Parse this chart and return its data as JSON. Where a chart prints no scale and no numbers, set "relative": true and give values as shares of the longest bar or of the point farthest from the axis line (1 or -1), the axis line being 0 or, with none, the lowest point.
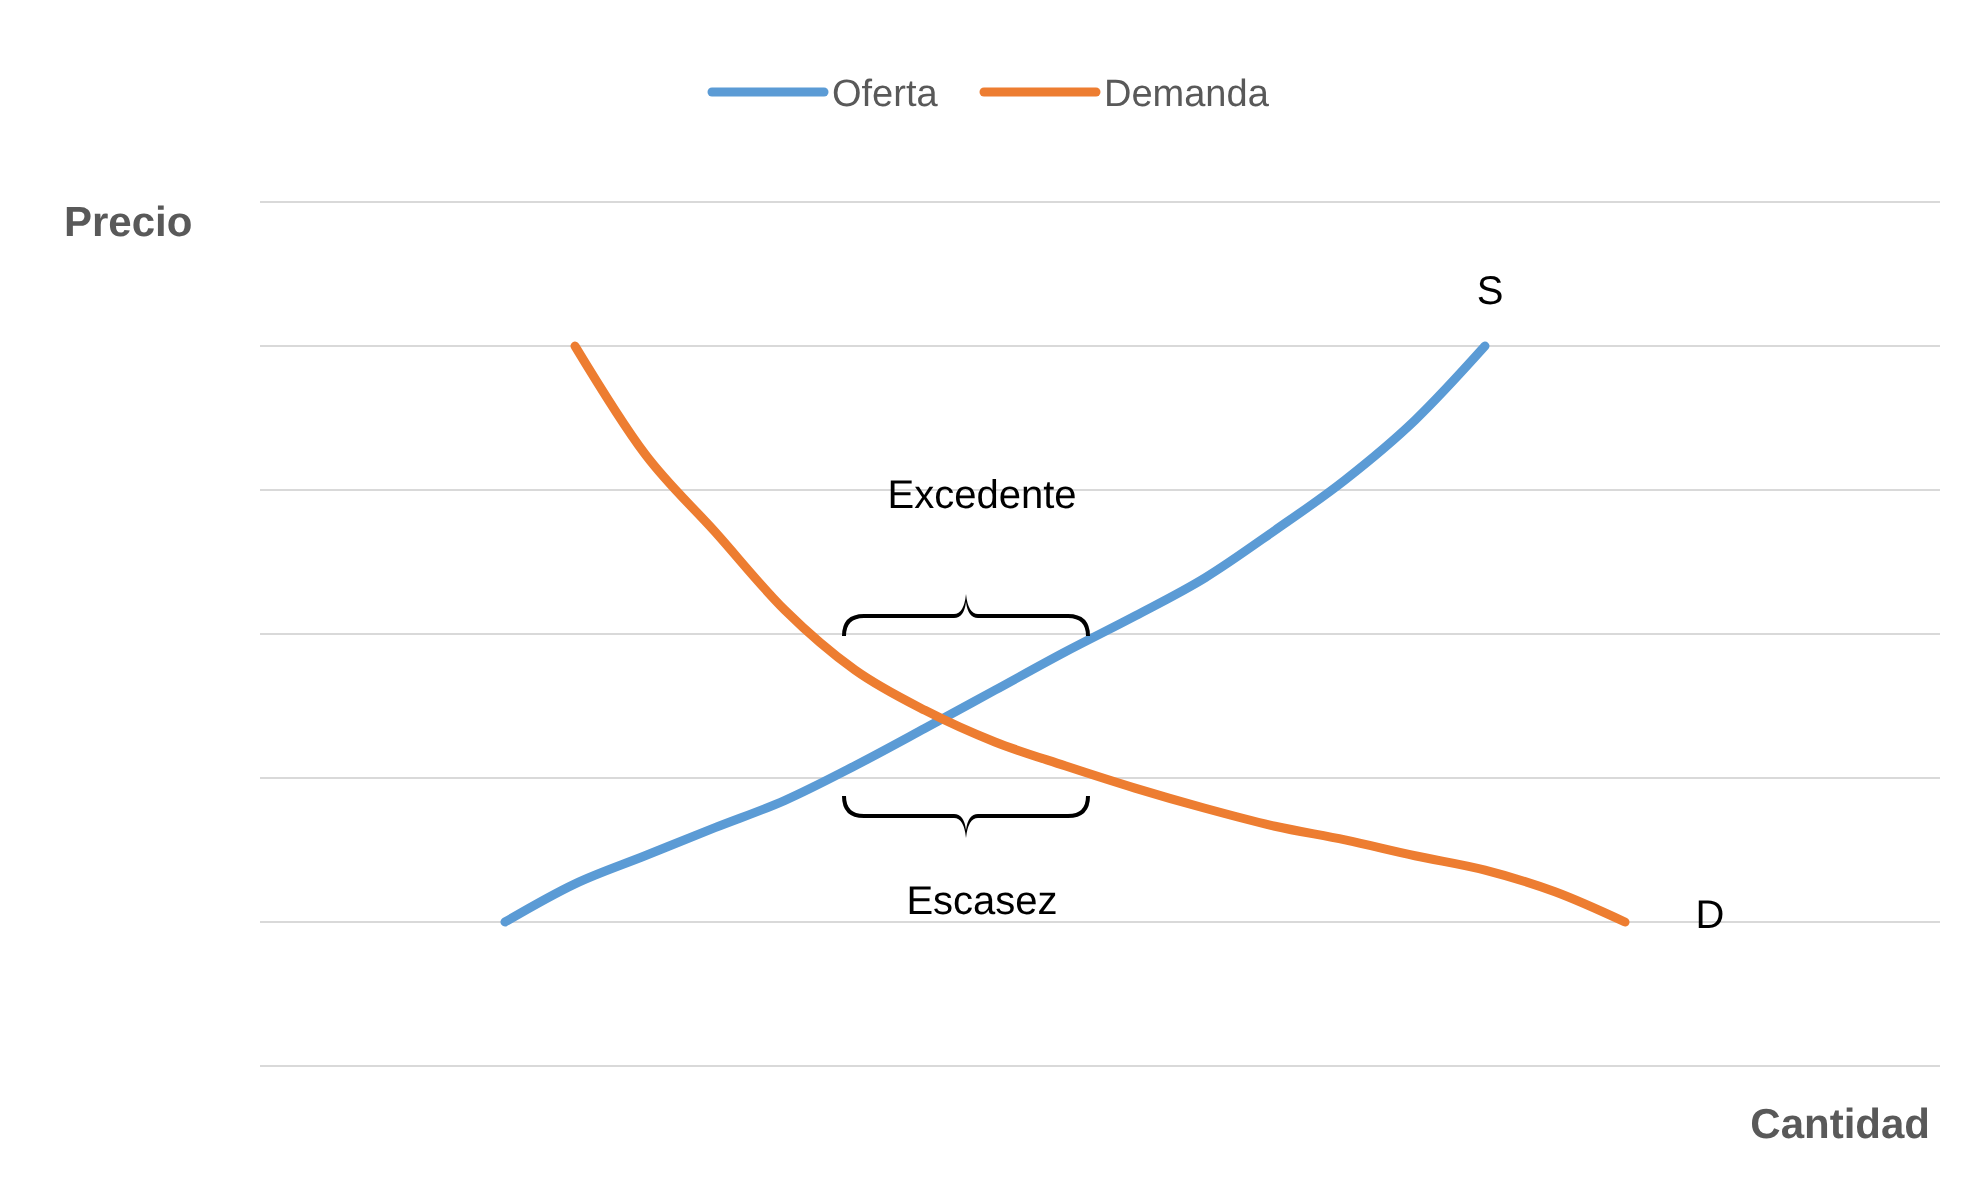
{
  "chart_data": {
    "type": "line",
    "relative": true,
    "xlabel": "Cantidad",
    "ylabel": "Precio",
    "legend": "top",
    "grid": "y",
    "categories": [
      null,
      null,
      null,
      null,
      null,
      null,
      null,
      null,
      null,
      null,
      null,
      null,
      null,
      null,
      null,
      null,
      null,
      null,
      null,
      null,
      null,
      null,
      null,
      null
    ],
    "series": [
      {
        "name": "Oferta",
        "color": "#5b9bd5",
        "values": [
          null,
          null,
          null,
          0.2,
          0.253,
          0.292,
          0.331,
          0.369,
          0.417,
          0.469,
          0.522,
          0.575,
          0.625,
          0.678,
          0.744,
          0.814,
          0.897,
          1.0,
          null,
          null,
          null,
          null,
          null,
          null
        ]
      },
      {
        "name": "Demanda",
        "color": "#ed7d31",
        "values": [
          null,
          null,
          null,
          null,
          1.0,
          0.85,
          0.742,
          0.633,
          0.55,
          0.494,
          0.45,
          0.417,
          0.386,
          0.358,
          0.333,
          0.314,
          0.292,
          0.272,
          0.242,
          0.2,
          null,
          null,
          null,
          null
        ]
      }
    ],
    "annotations": [
      "S",
      "Excedente",
      "Escasez",
      "D"
    ]
  }
}
